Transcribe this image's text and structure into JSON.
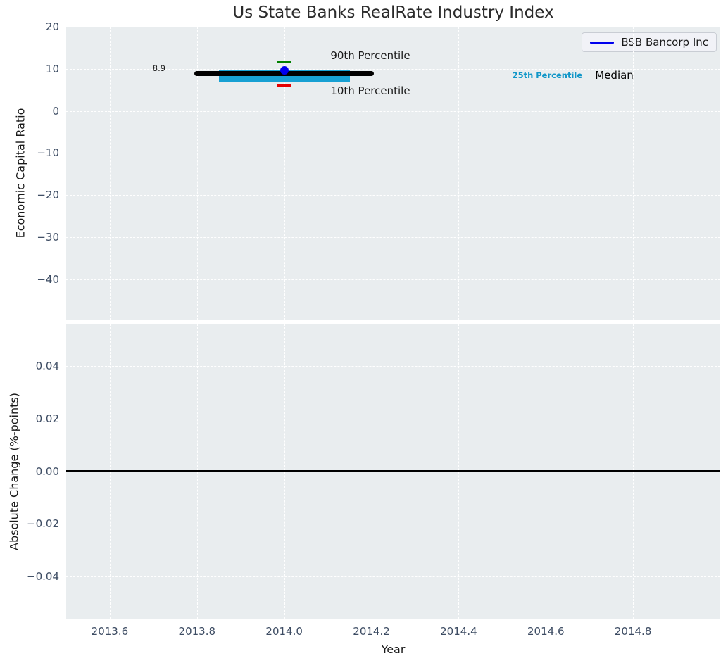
{
  "title": "Us State Banks RealRate Industry Index",
  "legend": {
    "label": "BSB Bancorp Inc",
    "line_color": "#0000ee"
  },
  "colors": {
    "axes_background": "#e9edef",
    "grid": "#ffffff",
    "tick_labels": "#3d4c63",
    "title_text": "#2b2b2b",
    "median": "#000000",
    "iqr_band": "#17a0d3",
    "p90": "#008000",
    "p10": "#e50000",
    "whisker": "#4a4a4a",
    "company": "#0000ee",
    "zero_line": "#000000"
  },
  "x_axis": {
    "label": "Year",
    "xlim": [
      2013.5,
      2015.0
    ],
    "ticks": {
      "values": [
        2013.6,
        2013.8,
        2014.0,
        2014.2,
        2014.4,
        2014.6,
        2014.8
      ],
      "labels": [
        "2013.6",
        "2013.8",
        "2014.0",
        "2014.2",
        "2014.4",
        "2014.6",
        "2014.8"
      ]
    }
  },
  "chart_data": [
    {
      "type": "percentile_summary",
      "ylabel": "Economic Capital Ratio",
      "ylim": [
        -49.7,
        20
      ],
      "grid": true,
      "yticks": {
        "values": [
          20,
          10,
          0,
          -10,
          -20,
          -30,
          -40
        ],
        "labels": [
          "20",
          "10",
          "0",
          "−10",
          "−20",
          "−30",
          "−40"
        ]
      },
      "marks": {
        "iqr_band": {
          "x0": 2013.85,
          "x1": 2014.15,
          "y0": 7.0,
          "y1": 9.8,
          "color_key": "iqr_band",
          "meaning": "25th-75th percentile band"
        },
        "median_line": {
          "x0": 2013.8,
          "x1": 2014.2,
          "y": 8.9,
          "color_key": "median",
          "meaning": "industry median, labeled 8.9"
        },
        "whisker": {
          "x": 2014.0,
          "y0": 6.1,
          "y1": 11.8,
          "color_key": "whisker"
        },
        "p90_cap": {
          "x": 2014.0,
          "y": 11.8,
          "half_width_years": 0.017,
          "color_key": "p90",
          "meaning": "90th percentile"
        },
        "p10_cap": {
          "x": 2014.0,
          "y": 6.1,
          "half_width_years": 0.017,
          "color_key": "p10",
          "meaning": "10th percentile"
        },
        "company_point": {
          "name": "BSB Bancorp Inc",
          "x": 2014.0,
          "y": 9.7,
          "color_key": "company"
        }
      },
      "annotations": [
        {
          "text": "8.9",
          "x": 2013.713,
          "y": 10.2,
          "color": "#1a1a1a",
          "size": 11.5,
          "weight": "normal",
          "anchor": "center"
        },
        {
          "text": "90th Percentile",
          "x": 2014.106,
          "y": 13.2,
          "color": "#1a1a1a",
          "size": 15,
          "weight": "normal",
          "anchor": "left"
        },
        {
          "text": "10th Percentile",
          "x": 2014.106,
          "y": 4.75,
          "color": "#1a1a1a",
          "size": 15,
          "weight": "normal",
          "anchor": "left"
        },
        {
          "text": "25th Percentile",
          "x": 2014.523,
          "y": 8.45,
          "color": "#1096c8",
          "size": 11.5,
          "weight": "bold",
          "anchor": "left"
        },
        {
          "text": "Median",
          "x": 2014.713,
          "y": 8.45,
          "color": "#000000",
          "size": 15,
          "weight": "normal",
          "anchor": "left"
        }
      ]
    },
    {
      "type": "line",
      "ylabel": "Absolute Change (%-points)",
      "ylim": [
        -0.056,
        0.056
      ],
      "grid": true,
      "yticks": {
        "values": [
          0.04,
          0.02,
          0,
          -0.02,
          -0.04
        ],
        "labels": [
          "0.04",
          "0.02",
          "0.00",
          "−0.02",
          "−0.04"
        ]
      },
      "zero_line": {
        "y": 0,
        "color_key": "zero_line"
      },
      "series": []
    }
  ]
}
